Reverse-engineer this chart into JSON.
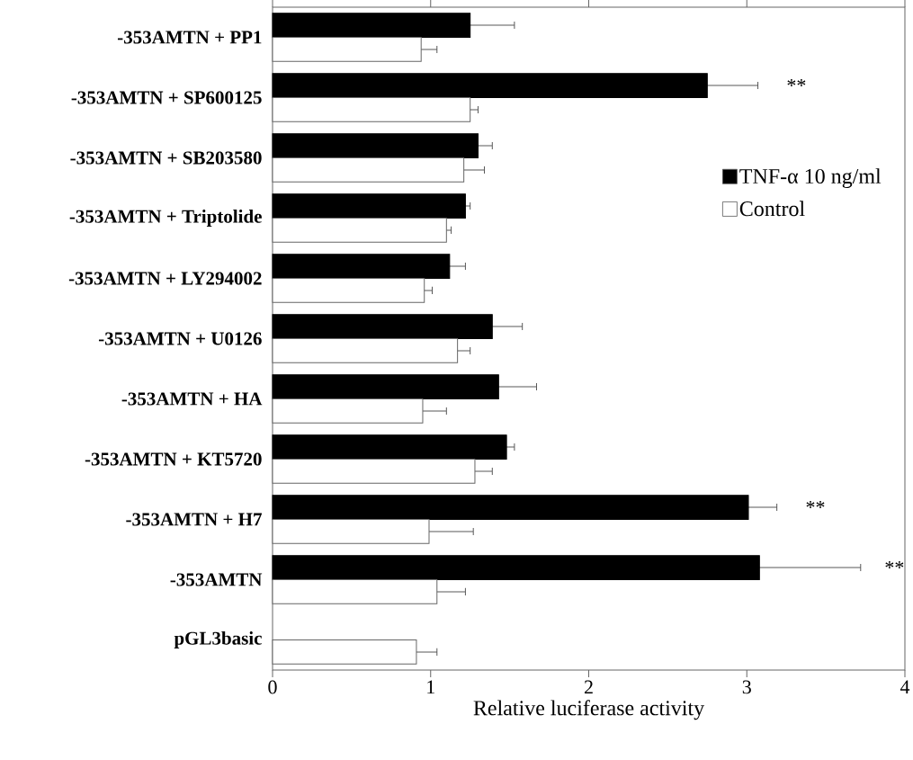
{
  "chart_data": {
    "type": "bar",
    "orientation": "horizontal",
    "xlabel": "Relative luciferase activity",
    "categories": [
      "-353AMTN + PP1",
      "-353AMTN + SP600125",
      "-353AMTN + SB203580",
      "-353AMTN + Triptolide",
      "-353AMTN + LY294002",
      "-353AMTN + U0126",
      "-353AMTN + HA",
      "-353AMTN + KT5720",
      "-353AMTN + H7",
      "-353AMTN",
      "pGL3basic"
    ],
    "series": [
      {
        "name": "TNF-α 10 ng/ml",
        "color": "#000000",
        "values": [
          1.25,
          2.75,
          1.3,
          1.22,
          1.12,
          1.39,
          1.43,
          1.48,
          3.01,
          3.08,
          null
        ],
        "errors": [
          0.28,
          0.32,
          0.09,
          0.03,
          0.1,
          0.19,
          0.24,
          0.05,
          0.18,
          0.64,
          null
        ]
      },
      {
        "name": "Control",
        "color": "#ffffff",
        "values": [
          0.94,
          1.25,
          1.21,
          1.1,
          0.96,
          1.17,
          0.95,
          1.28,
          0.99,
          1.04,
          0.91
        ],
        "errors": [
          0.1,
          0.05,
          0.13,
          0.03,
          0.05,
          0.08,
          0.15,
          0.11,
          0.28,
          0.18,
          0.13
        ]
      }
    ],
    "xlim": [
      0,
      4
    ],
    "xticks": [
      0,
      1,
      2,
      3,
      4
    ],
    "grid": false,
    "legend": "right",
    "annotations": [
      "**",
      "**",
      "**"
    ]
  }
}
